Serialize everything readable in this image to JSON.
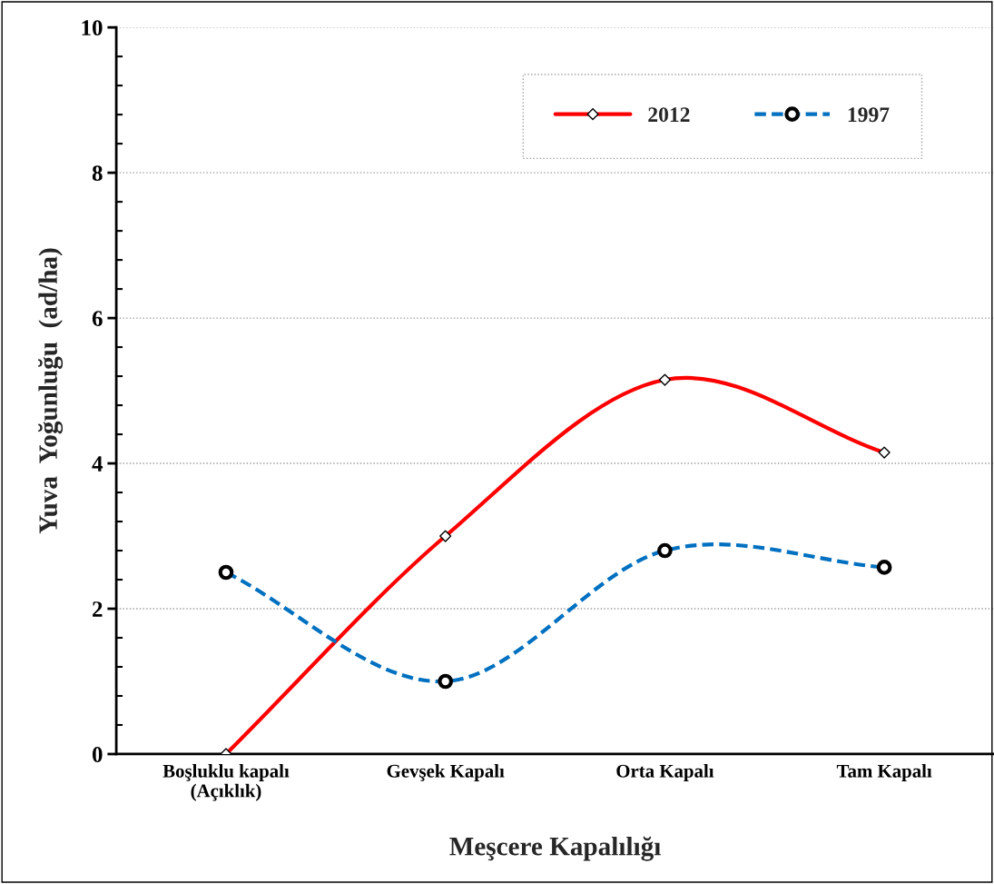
{
  "chart_data": {
    "type": "line",
    "xlabel": "Meşcere Kapalılığı",
    "ylabel": "Yuva  Yoğunluğu  (ad/ha)",
    "categories": [
      "Boşluklu kapalı\n(Açıklık)",
      "Gevşek Kapalı",
      "Orta Kapalı",
      "Tam Kapalı"
    ],
    "series": [
      {
        "name": "2012",
        "color": "#ff0000",
        "values": [
          0,
          3.0,
          5.15,
          4.15
        ],
        "marker": "diamond",
        "line_style": "solid"
      },
      {
        "name": "1997",
        "color": "#0070c0",
        "values": [
          2.5,
          1.0,
          2.8,
          2.57
        ],
        "marker": "circle",
        "line_style": "dashed"
      }
    ],
    "ylim": [
      0,
      10
    ],
    "yticks": [
      0,
      2,
      4,
      6,
      8,
      10
    ],
    "grid": "y",
    "legend": "top right"
  }
}
